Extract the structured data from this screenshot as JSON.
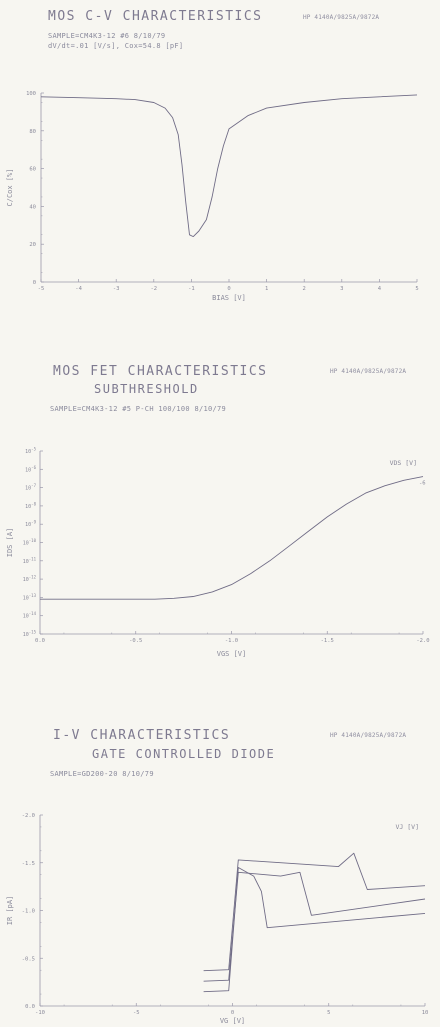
{
  "panels": [
    {
      "title": "MOS C-V CHARACTERISTICS",
      "title2": "",
      "header": "HP 4140A/9825A/9872A",
      "subtitle_lines": [
        "SAMPLE=CM4K3-12  #6   8/10/79",
        "dV/dt=.01 [V/s], Cox=54.8 [pF]"
      ]
    },
    {
      "title": "MOS FET CHARACTERISTICS",
      "title2": "SUBTHRESHOLD",
      "header": "HP 4140A/9825A/9872A",
      "subtitle_lines": [
        "SAMPLE=CM4K3-12 #5  P-CH 100/100   8/10/79"
      ]
    },
    {
      "title": "I-V CHARACTERISTICS",
      "title2": "GATE CONTROLLED DIODE",
      "header": "HP 4140A/9825A/9872A",
      "subtitle_lines": [
        "SAMPLE=GD200-20    8/10/79"
      ]
    }
  ],
  "chart_data": [
    {
      "type": "line",
      "title": "MOS C-V CHARACTERISTICS",
      "xlabel": "BIAS [V]",
      "ylabel": "C/Cox [%]",
      "xlim": [
        -5,
        5
      ],
      "ylim": [
        0,
        100
      ],
      "x_ticks": [
        "-5",
        "-4",
        "-3",
        "-2",
        "-1",
        "0",
        "1",
        "2",
        "3",
        "4",
        "5"
      ],
      "y_ticks": [
        "0",
        "20",
        "40",
        "60",
        "80",
        "100"
      ],
      "series": [
        {
          "x": [
            -5,
            -4,
            -3,
            -2.5,
            -2,
            -1.7,
            -1.5,
            -1.35,
            -1.25,
            -1.15,
            -1.05,
            -0.95,
            -0.8,
            -0.6,
            -0.45,
            -0.3,
            -0.15,
            0,
            0.5,
            1,
            2,
            3,
            4,
            5
          ],
          "y": [
            98,
            97.5,
            97,
            96.5,
            95,
            92,
            87,
            78,
            62,
            42,
            25,
            24,
            27,
            33,
            45,
            60,
            72,
            81,
            88,
            92,
            95,
            97,
            98,
            99
          ]
        }
      ]
    },
    {
      "type": "line",
      "title": "MOS FET CHARACTERISTICS SUBTHRESHOLD",
      "xlabel": "VGS [V]",
      "ylabel": "IDS [A]",
      "xlim": [
        0,
        -2.0
      ],
      "ylim": [
        -15,
        -5
      ],
      "log_y": true,
      "x_ticks": [
        "0.0",
        "-0.5",
        "-1.0",
        "-1.5",
        "-2.0"
      ],
      "y_ticks": [
        "10^-5",
        "10^-6",
        "10^-7",
        "10^-8",
        "10^-9",
        "10^-10",
        "10^-11",
        "10^-12",
        "10^-13",
        "10^-14",
        "10^-15"
      ],
      "legend_title": "VDS [V]",
      "series": [
        {
          "name": "-6",
          "x": [
            0,
            -0.2,
            -0.4,
            -0.6,
            -0.7,
            -0.8,
            -0.9,
            -1.0,
            -1.1,
            -1.2,
            -1.3,
            -1.4,
            -1.5,
            -1.6,
            -1.7,
            -1.8,
            -1.9,
            -2.0
          ],
          "y": [
            -13.1,
            -13.1,
            -13.1,
            -13.1,
            -13.05,
            -12.95,
            -12.7,
            -12.3,
            -11.7,
            -11.0,
            -10.2,
            -9.4,
            -8.6,
            -7.9,
            -7.3,
            -6.9,
            -6.6,
            -6.4
          ]
        }
      ]
    },
    {
      "type": "line",
      "title": "I-V CHARACTERISTICS GATE CONTROLLED DIODE",
      "xlabel": "VG [V]",
      "ylabel": "IR [pA]",
      "xlim": [
        -10,
        10
      ],
      "ylim": [
        0,
        2.0
      ],
      "x_ticks": [
        "-10",
        "-5",
        "0",
        "5",
        "10"
      ],
      "y_ticks": [
        "0.0",
        "-0.5",
        "-1.0",
        "-1.5",
        "-2.0"
      ],
      "legend_title": "VJ [V]",
      "series": [
        {
          "name": "",
          "x": [
            -1.5,
            -0.2,
            0.3,
            5.5,
            6.3,
            7,
            10
          ],
          "y": [
            0.37,
            0.38,
            1.53,
            1.46,
            1.6,
            1.22,
            1.26
          ]
        },
        {
          "name": "",
          "x": [
            -1.5,
            -0.2,
            0.3,
            2.5,
            3.5,
            4.1,
            10
          ],
          "y": [
            0.26,
            0.27,
            1.4,
            1.36,
            1.4,
            0.95,
            1.12
          ]
        },
        {
          "name": "",
          "x": [
            -1.5,
            -0.2,
            0.3,
            1.1,
            1.5,
            1.8,
            10
          ],
          "y": [
            0.15,
            0.16,
            1.45,
            1.36,
            1.2,
            0.82,
            0.97
          ]
        }
      ]
    }
  ]
}
